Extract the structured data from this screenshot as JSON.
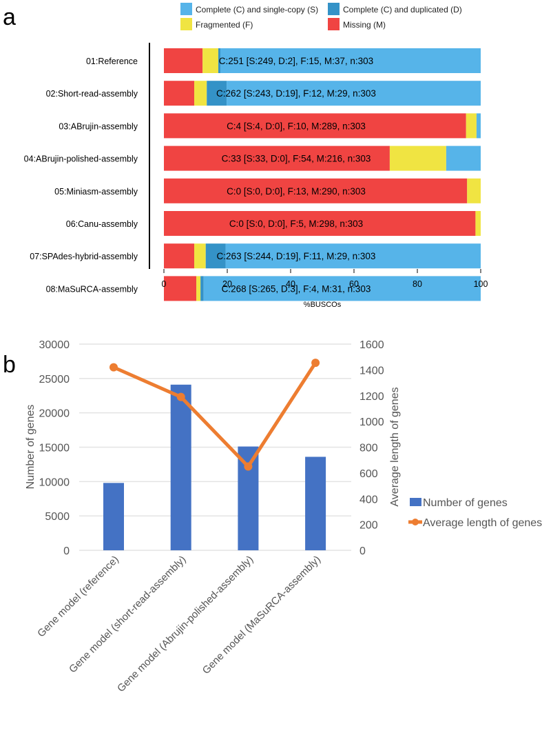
{
  "chart_data": [
    {
      "panel_label": "a",
      "type": "bar",
      "orientation": "horizontal-stacked",
      "xlabel": "%BUSCOs",
      "xlim": [
        0,
        100
      ],
      "xticks": [
        0,
        20,
        40,
        60,
        80,
        100
      ],
      "legend": [
        {
          "key": "S",
          "label": "Complete (C) and single-copy (S)",
          "color": "#56B4E9"
        },
        {
          "key": "D",
          "label": "Complete (C) and duplicated (D)",
          "color": "#3492C7"
        },
        {
          "key": "F",
          "label": "Fragmented (F)",
          "color": "#F0E442"
        },
        {
          "key": "M",
          "label": "Missing (M)",
          "color": "#F04442"
        }
      ],
      "categories": [
        "01:Reference",
        "02:Short-read-assembly",
        "03:ABrujin-assembly",
        "04:ABrujin-polished-assembly",
        "05:Miniasm-assembly",
        "06:Canu-assembly",
        "07:SPAdes-hybrid-assembly",
        "08:MaSuRCA-assembly"
      ],
      "counts": [
        {
          "S": 249,
          "D": 2,
          "F": 15,
          "M": 37,
          "n": 303
        },
        {
          "S": 243,
          "D": 19,
          "F": 12,
          "M": 29,
          "n": 303
        },
        {
          "S": 4,
          "D": 0,
          "F": 10,
          "M": 289,
          "n": 303
        },
        {
          "S": 33,
          "D": 0,
          "F": 54,
          "M": 216,
          "n": 303
        },
        {
          "S": 0,
          "D": 0,
          "F": 13,
          "M": 290,
          "n": 303
        },
        {
          "S": 0,
          "D": 0,
          "F": 5,
          "M": 298,
          "n": 303
        },
        {
          "S": 244,
          "D": 19,
          "F": 11,
          "M": 29,
          "n": 303
        },
        {
          "S": 265,
          "D": 3,
          "F": 4,
          "M": 31,
          "n": 303
        }
      ],
      "bar_labels": [
        "C:251 [S:249, D:2], F:15, M:37, n:303",
        "C:262 [S:243, D:19], F:12, M:29, n:303",
        "C:4 [S:4, D:0], F:10, M:289, n:303",
        "C:33 [S:33, D:0], F:54, M:216, n:303",
        "C:0 [S:0, D:0], F:13, M:290, n:303",
        "C:0 [S:0, D:0], F:5, M:298, n:303",
        "C:263 [S:244, D:19], F:11, M:29, n:303",
        "C:268 [S:265, D:3], F:4, M:31, n:303"
      ]
    },
    {
      "panel_label": "b",
      "type": "bar",
      "categories": [
        "Gene model (reference)",
        "Gene model (short-read-assembly)",
        "Gene model (Abrujin-polished-assembly)",
        "Gene model (MaSuRCA-assembly)"
      ],
      "ylabel": "Number of genes",
      "ylim": [
        0,
        30000
      ],
      "yticks": [
        0,
        5000,
        10000,
        15000,
        20000,
        25000,
        30000
      ],
      "y2label": "Average length of genes",
      "y2lim": [
        0,
        1600
      ],
      "y2ticks": [
        0,
        200,
        400,
        600,
        800,
        1000,
        1200,
        1400,
        1600
      ],
      "grid": true,
      "legend_position": "right",
      "series": [
        {
          "name": "Number of genes",
          "type": "bar",
          "axis": "left",
          "color": "#4472C4",
          "values": [
            9800,
            24100,
            15100,
            13600
          ]
        },
        {
          "name": "Average length of genes",
          "type": "line",
          "axis": "right",
          "color": "#ED7D31",
          "values": [
            1420,
            1190,
            650,
            1455
          ]
        }
      ]
    }
  ]
}
